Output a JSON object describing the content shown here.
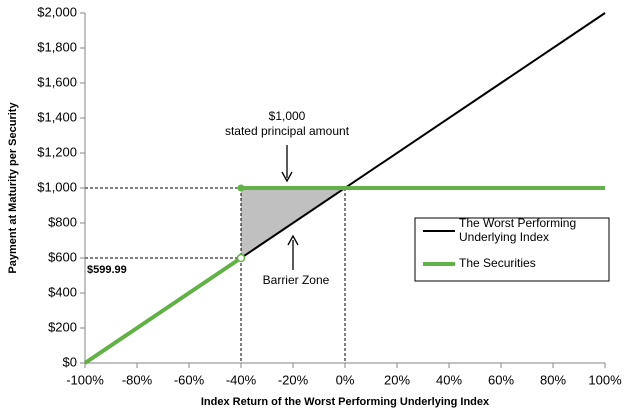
{
  "chart_data": {
    "type": "line",
    "x_label": "Index Return of the Worst Performing Underlying Index",
    "y_label": "Payment at Maturity per Security",
    "xlim": [
      -100,
      100
    ],
    "ylim": [
      0,
      2000
    ],
    "xticks": [
      {
        "value": -100,
        "label": "-100%"
      },
      {
        "value": -80,
        "label": "-80%"
      },
      {
        "value": -60,
        "label": "-60%"
      },
      {
        "value": -40,
        "label": "-40%"
      },
      {
        "value": -20,
        "label": "-20%"
      },
      {
        "value": 0,
        "label": "0%"
      },
      {
        "value": 20,
        "label": "20%"
      },
      {
        "value": 40,
        "label": "40%"
      },
      {
        "value": 60,
        "label": "60%"
      },
      {
        "value": 80,
        "label": "80%"
      },
      {
        "value": 100,
        "label": "100%"
      }
    ],
    "yticks": [
      {
        "value": 0,
        "label": "$0"
      },
      {
        "value": 200,
        "label": "$200"
      },
      {
        "value": 400,
        "label": "$400"
      },
      {
        "value": 600,
        "label": "$600"
      },
      {
        "value": 800,
        "label": "$800"
      },
      {
        "value": 1000,
        "label": "$1,000"
      },
      {
        "value": 1200,
        "label": "$1,200"
      },
      {
        "value": 1400,
        "label": "$1,400"
      },
      {
        "value": 1600,
        "label": "$1,600"
      },
      {
        "value": 1800,
        "label": "$1,800"
      },
      {
        "value": 2000,
        "label": "$2,000"
      }
    ],
    "series": [
      {
        "name": "The Worst Performing Underlying Index",
        "color": "#000000",
        "x": [
          -100,
          100
        ],
        "values": [
          0,
          2000
        ]
      },
      {
        "name": "The Securities",
        "color": "#62b146",
        "x": [
          -100,
          -40,
          -40,
          -40,
          100
        ],
        "values": [
          0,
          599.99,
          null,
          1000,
          1000
        ]
      }
    ],
    "barrier_zone": {
      "label": "Barrier Zone",
      "color": "#c0c0c0",
      "x": [
        -40,
        -40,
        0
      ],
      "values": [
        599.99,
        1000,
        1000
      ]
    },
    "annotations": [
      {
        "text": "$1,000"
      },
      {
        "text": "stated principal amount"
      },
      {
        "text": "$599.99"
      }
    ],
    "legend": "right"
  }
}
